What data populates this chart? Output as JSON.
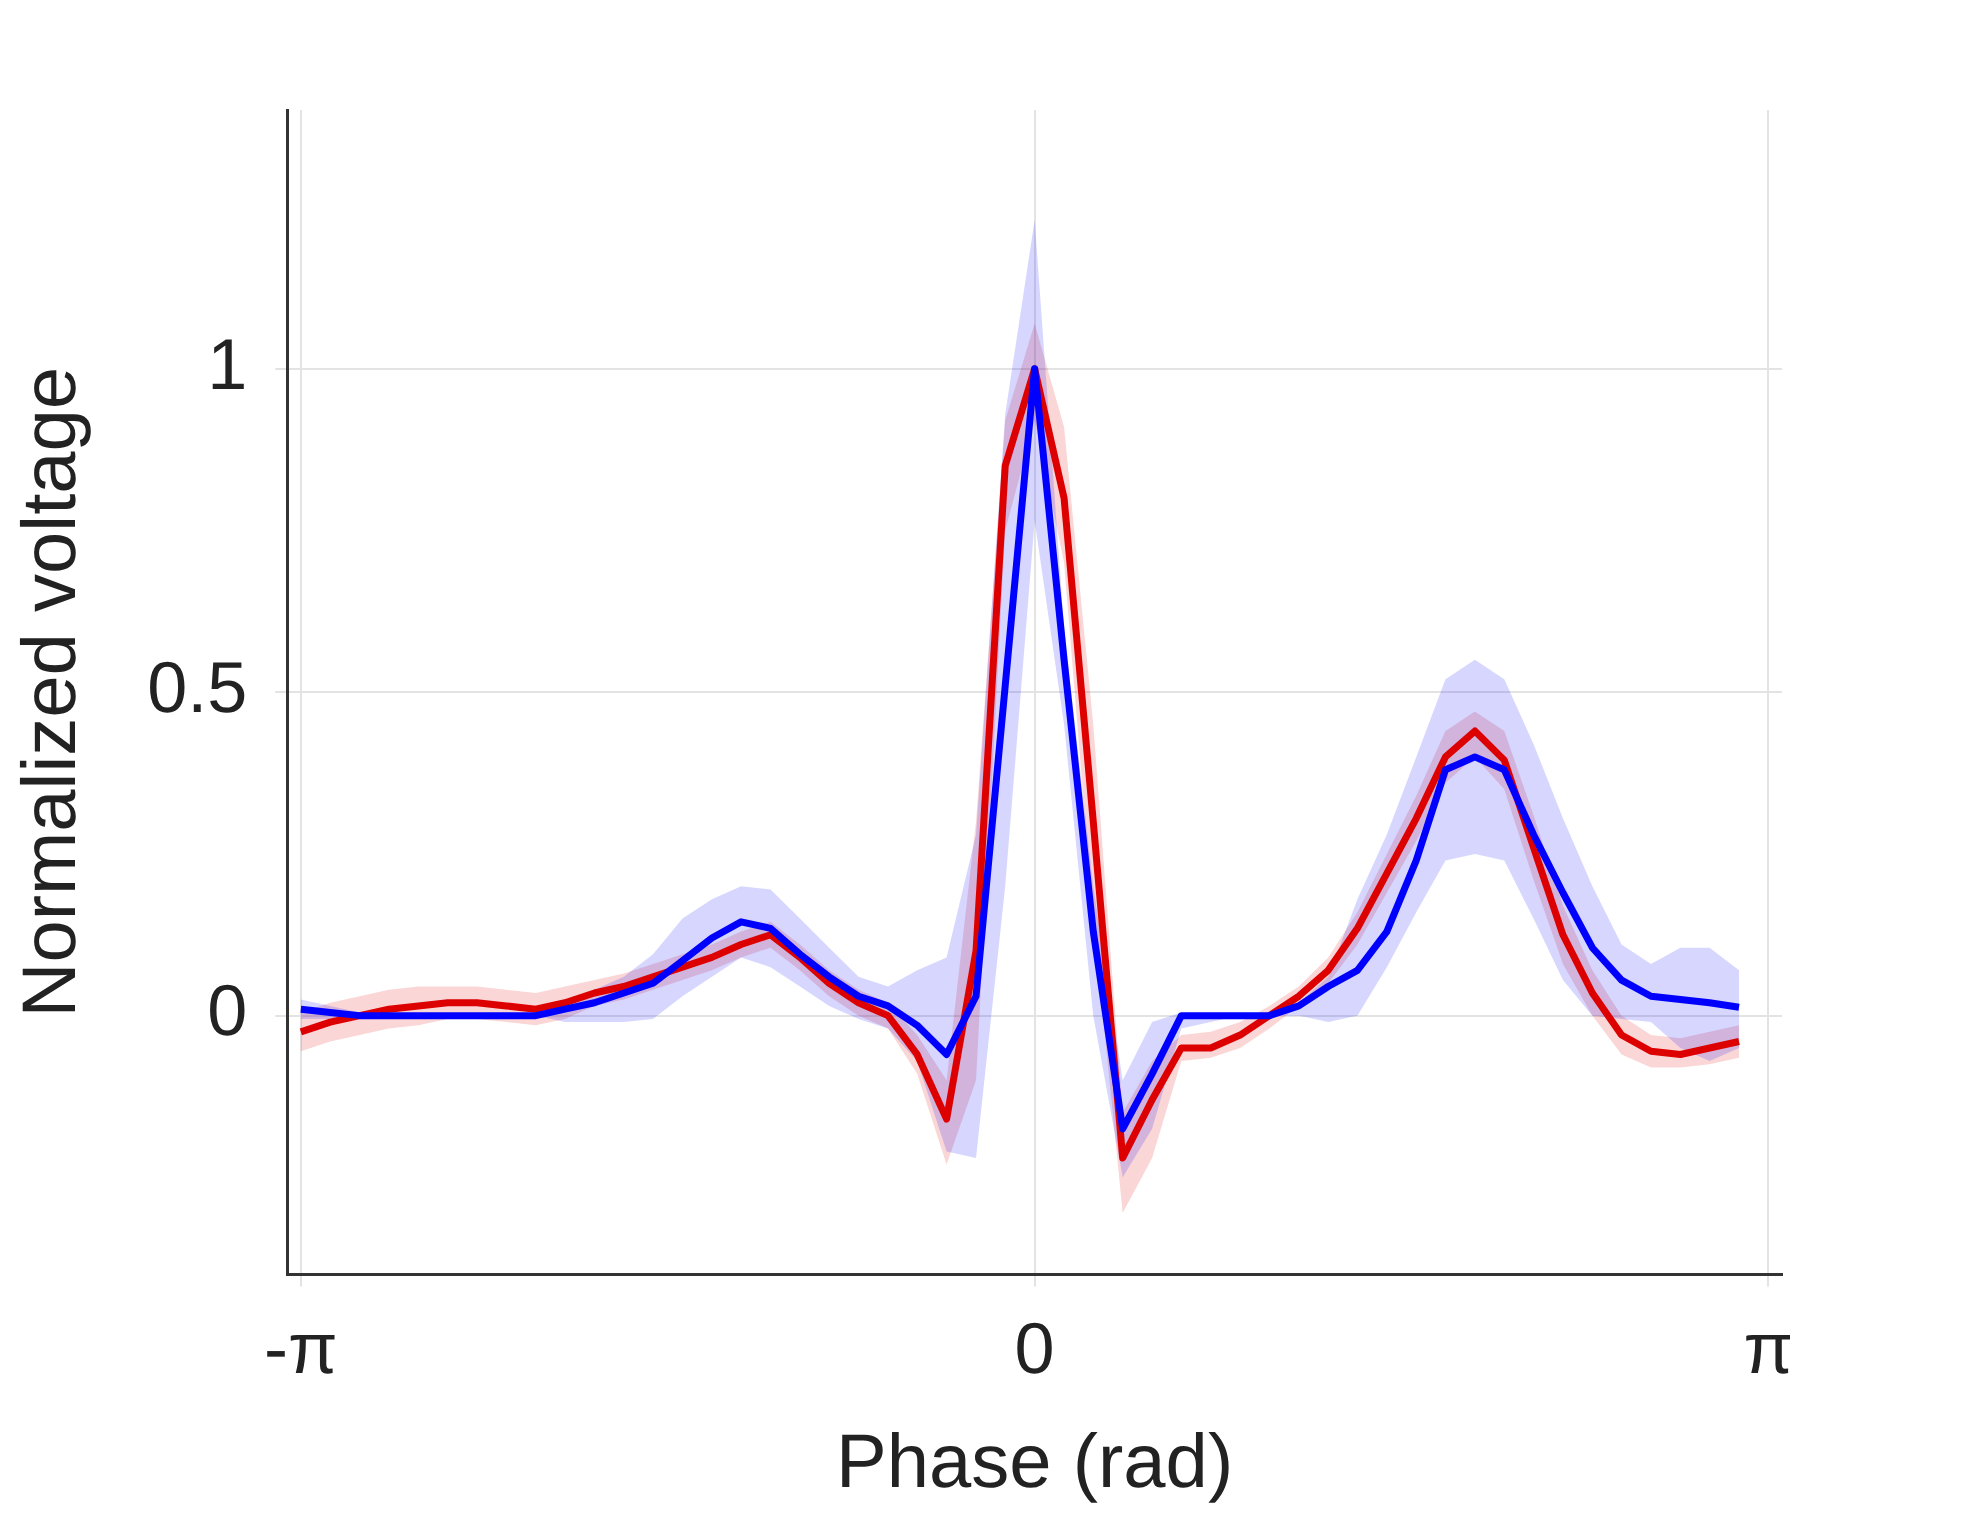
{
  "chart_data": {
    "type": "line",
    "xlabel": "Phase (rad)",
    "ylabel": "Normalized voltage",
    "x": [
      -3.142,
      -3.016,
      -2.89,
      -2.765,
      -2.639,
      -2.513,
      -2.388,
      -2.262,
      -2.136,
      -2.011,
      -1.885,
      -1.759,
      -1.634,
      -1.508,
      -1.382,
      -1.257,
      -1.131,
      -1.005,
      -0.88,
      -0.754,
      -0.628,
      -0.503,
      -0.377,
      -0.251,
      -0.126,
      0,
      0.126,
      0.251,
      0.377,
      0.503,
      0.628,
      0.754,
      0.88,
      1.005,
      1.131,
      1.257,
      1.382,
      1.508,
      1.634,
      1.759,
      1.885,
      2.011,
      2.136,
      2.262,
      2.388,
      2.513,
      2.639,
      2.765,
      2.89,
      3.016
    ],
    "series": [
      {
        "color": "#dd0000",
        "values": [
          -0.025,
          -0.01,
          0,
          0.01,
          0.015,
          0.02,
          0.02,
          0.015,
          0.01,
          0.02,
          0.035,
          0.045,
          0.06,
          0.075,
          0.09,
          0.11,
          0.125,
          0.09,
          0.05,
          0.02,
          0,
          -0.06,
          -0.16,
          0.1,
          0.85,
          1.0,
          0.8,
          0.3,
          -0.22,
          -0.13,
          -0.05,
          -0.05,
          -0.03,
          0,
          0.03,
          0.07,
          0.135,
          0.22,
          0.305,
          0.4,
          0.44,
          0.395,
          0.26,
          0.125,
          0.035,
          -0.03,
          -0.055,
          -0.06,
          -0.05,
          -0.04
        ],
        "lower": [
          -0.055,
          -0.04,
          -0.03,
          -0.02,
          -0.015,
          -0.005,
          -0.005,
          -0.01,
          -0.015,
          -0.005,
          0.015,
          0.025,
          0.04,
          0.055,
          0.07,
          0.09,
          0.105,
          0.07,
          0.03,
          0,
          -0.02,
          -0.09,
          -0.23,
          -0.1,
          0.75,
          0.92,
          0.7,
          0.15,
          -0.305,
          -0.22,
          -0.07,
          -0.065,
          -0.05,
          -0.02,
          0.015,
          0.05,
          0.11,
          0.19,
          0.27,
          0.36,
          0.4,
          0.35,
          0.21,
          0.08,
          0,
          -0.06,
          -0.08,
          -0.08,
          -0.075,
          -0.065
        ],
        "upper": [
          0.005,
          0.02,
          0.03,
          0.04,
          0.045,
          0.045,
          0.045,
          0.04,
          0.035,
          0.045,
          0.055,
          0.065,
          0.08,
          0.095,
          0.11,
          0.13,
          0.145,
          0.11,
          0.07,
          0.04,
          0.02,
          -0.03,
          -0.1,
          0.3,
          0.92,
          1.07,
          0.91,
          0.45,
          -0.15,
          -0.07,
          -0.03,
          -0.025,
          -0.01,
          0.015,
          0.045,
          0.09,
          0.16,
          0.25,
          0.34,
          0.44,
          0.47,
          0.44,
          0.31,
          0.17,
          0.07,
          0,
          -0.03,
          -0.035,
          -0.025,
          -0.015
        ]
      },
      {
        "color": "#0000ff",
        "values": [
          0.01,
          0.005,
          0,
          0,
          0,
          0,
          0,
          0,
          0,
          0.01,
          0.02,
          0.035,
          0.05,
          0.085,
          0.12,
          0.145,
          0.135,
          0.095,
          0.06,
          0.03,
          0.015,
          -0.015,
          -0.06,
          0.03,
          0.51,
          1.0,
          0.55,
          0.13,
          -0.175,
          -0.09,
          0,
          0,
          0,
          0,
          0.015,
          0.045,
          0.07,
          0.13,
          0.24,
          0.38,
          0.4,
          0.38,
          0.28,
          0.19,
          0.105,
          0.055,
          0.03,
          0.025,
          0.02,
          0.013
        ],
        "lower": [
          -0.005,
          -0.005,
          0,
          0,
          0,
          0,
          0,
          0,
          0,
          -0.01,
          -0.01,
          -0.01,
          -0.005,
          0.03,
          0.06,
          0.09,
          0.075,
          0.045,
          0.015,
          -0.005,
          -0.02,
          -0.07,
          -0.21,
          -0.22,
          0.2,
          0.765,
          0.45,
          0,
          -0.25,
          -0.175,
          -0.02,
          -0.01,
          0,
          0,
          0,
          -0.01,
          0,
          0.075,
          0.16,
          0.24,
          0.25,
          0.24,
          0.15,
          0.055,
          0,
          -0.005,
          -0.01,
          -0.05,
          -0.07,
          -0.05
        ],
        "upper": [
          0.025,
          0.015,
          0.005,
          0,
          0,
          0,
          0,
          0,
          0,
          0.02,
          0.04,
          0.06,
          0.095,
          0.15,
          0.18,
          0.2,
          0.195,
          0.15,
          0.105,
          0.06,
          0.045,
          0.07,
          0.09,
          0.28,
          0.93,
          1.23,
          0.6,
          0.2,
          -0.1,
          -0.01,
          0.005,
          0,
          0,
          0.005,
          0.02,
          0.06,
          0.18,
          0.28,
          0.4,
          0.52,
          0.55,
          0.52,
          0.42,
          0.305,
          0.2,
          0.11,
          0.08,
          0.105,
          0.105,
          0.07
        ]
      }
    ],
    "xlim": [
      -3.2,
      3.2
    ],
    "ylim": [
      -0.4,
      1.4
    ],
    "xticks": [
      {
        "value": -3.1416,
        "label": "-π"
      },
      0,
      {
        "value": 3.1416,
        "label": "π"
      }
    ],
    "yticks": [
      0,
      0.5,
      1
    ],
    "grid": true
  }
}
